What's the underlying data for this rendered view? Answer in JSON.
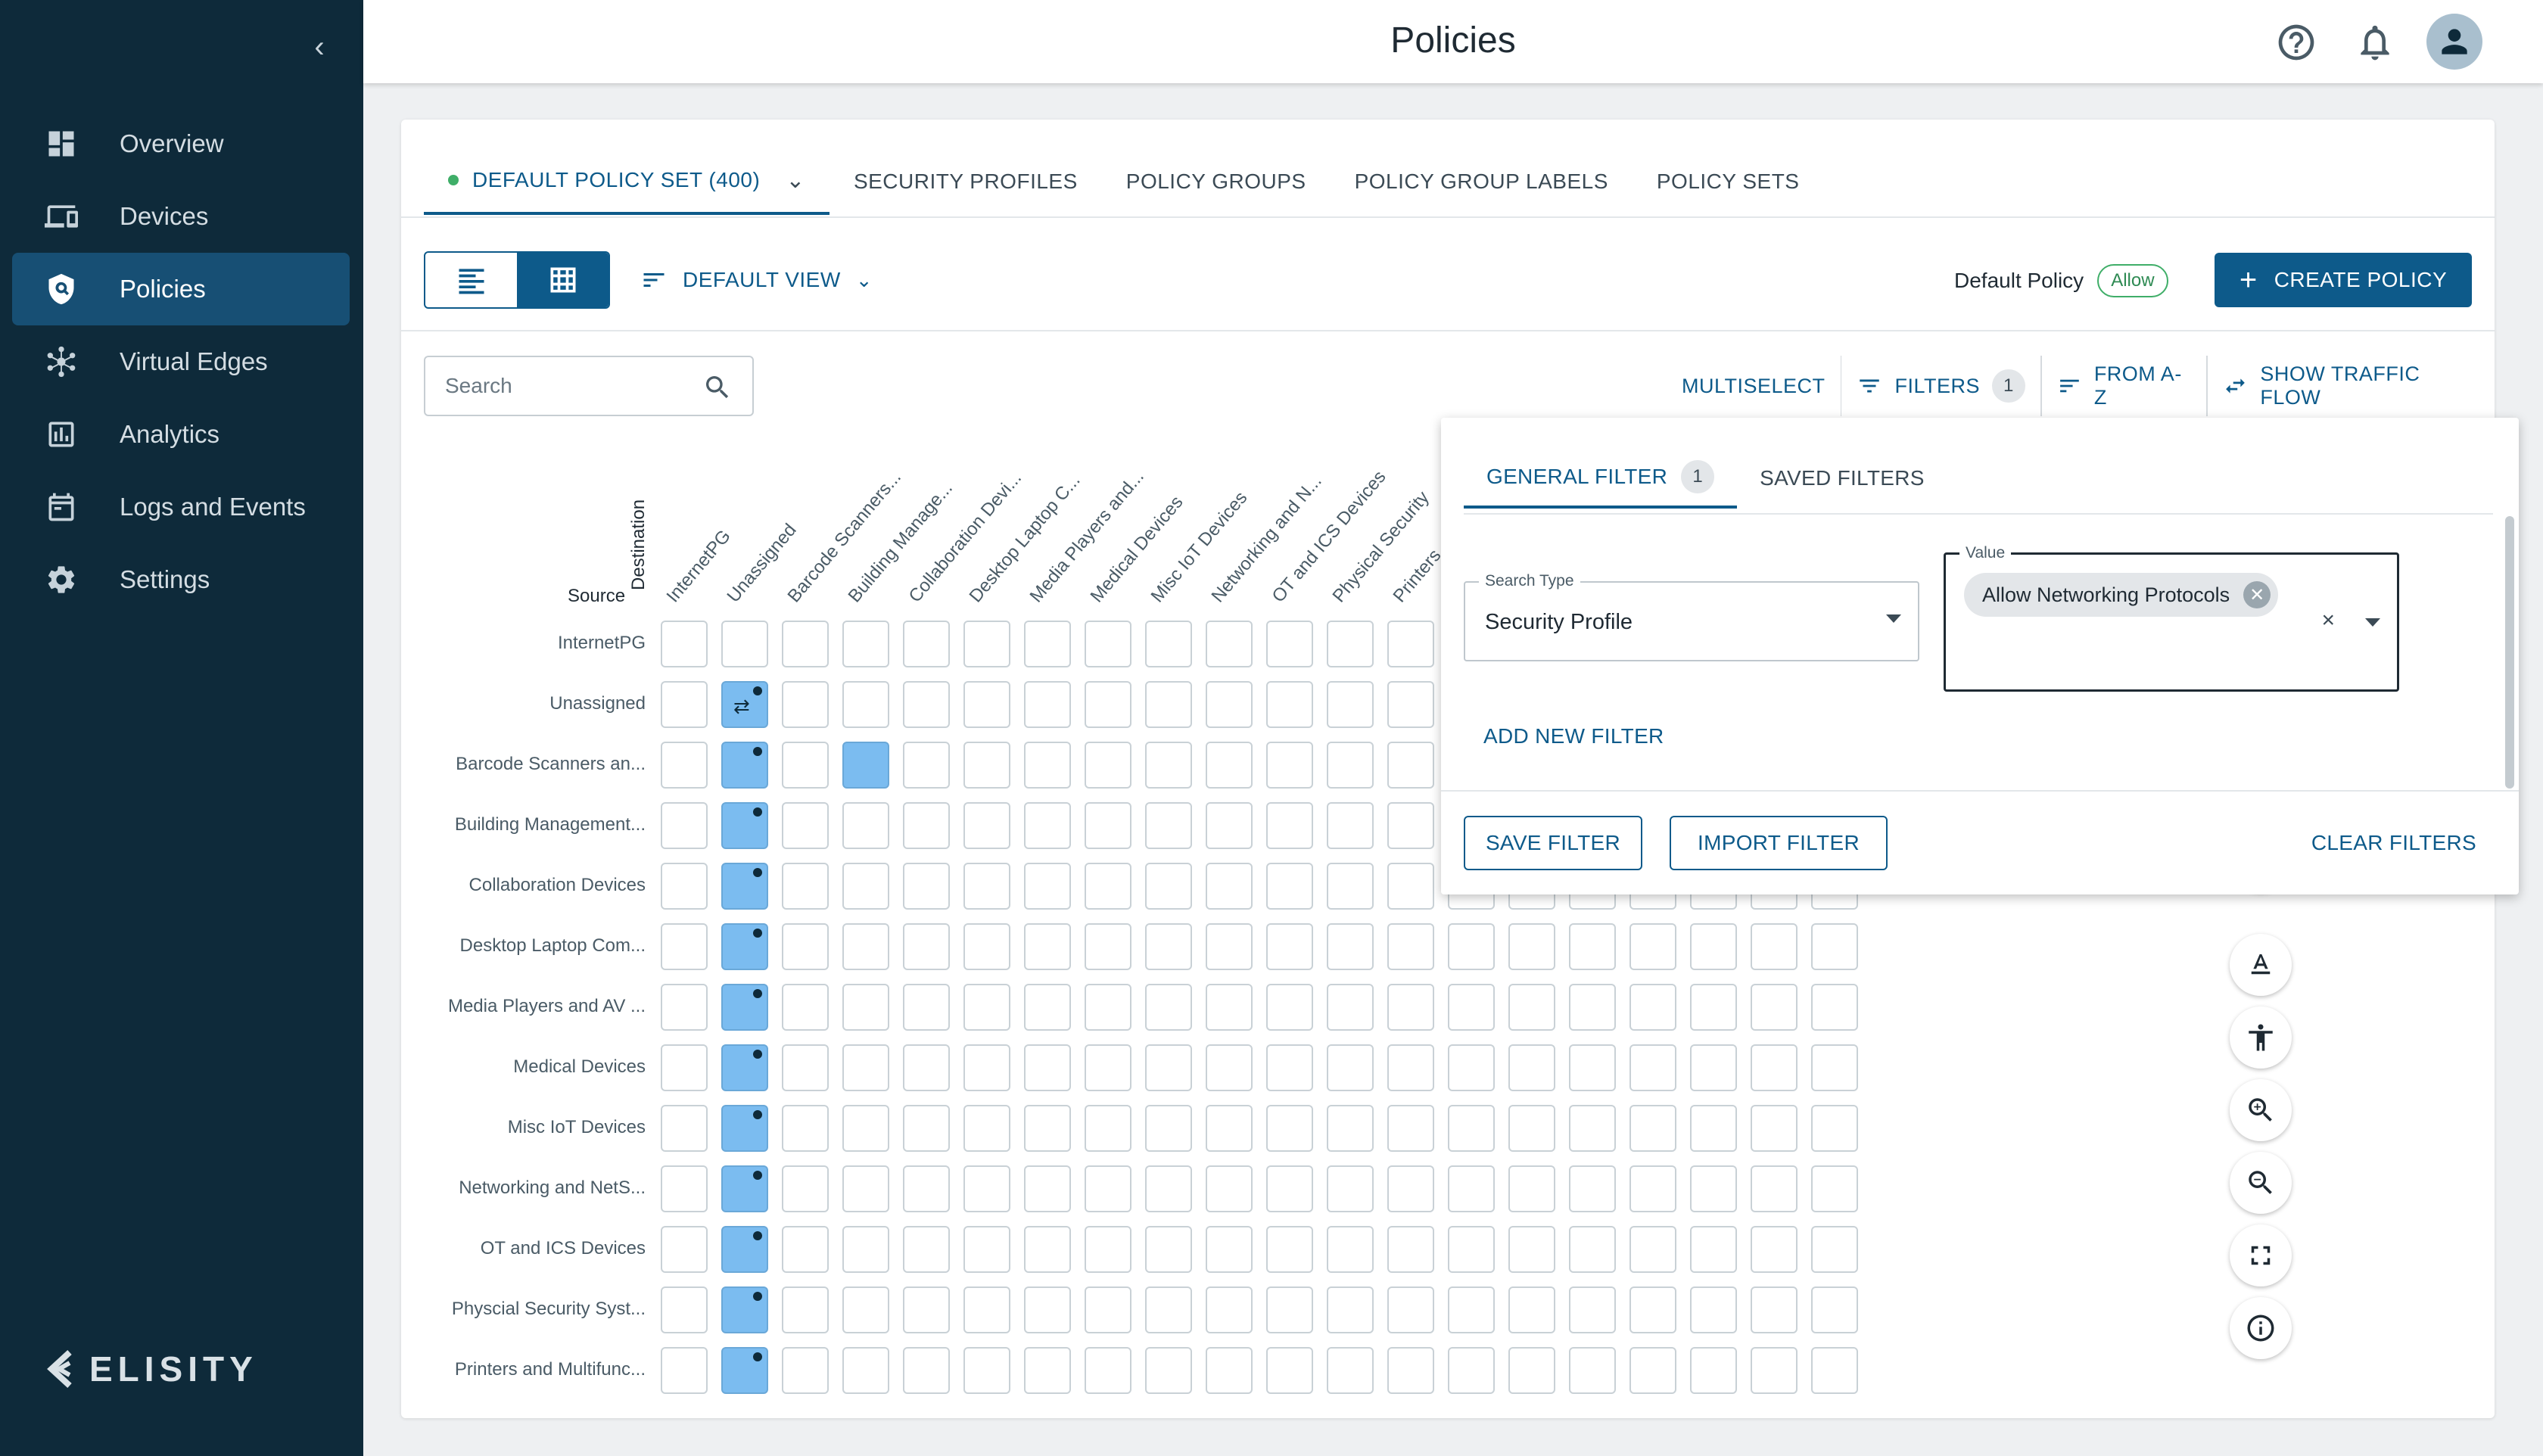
{
  "header": {
    "title": "Policies"
  },
  "sidebar": {
    "items": [
      {
        "label": "Overview",
        "icon": "dashboard-icon",
        "active": false
      },
      {
        "label": "Devices",
        "icon": "devices-icon",
        "active": false
      },
      {
        "label": "Policies",
        "icon": "shield-icon",
        "active": true
      },
      {
        "label": "Virtual Edges",
        "icon": "hub-icon",
        "active": false
      },
      {
        "label": "Analytics",
        "icon": "analytics-icon",
        "active": false
      },
      {
        "label": "Logs and Events",
        "icon": "calendar-icon",
        "active": false
      },
      {
        "label": "Settings",
        "icon": "gear-icon",
        "active": false
      }
    ],
    "brand": "ELISITY"
  },
  "tabs": [
    {
      "label": "DEFAULT POLICY SET (400)",
      "active": true
    },
    {
      "label": "SECURITY PROFILES",
      "active": false
    },
    {
      "label": "POLICY GROUPS",
      "active": false
    },
    {
      "label": "POLICY GROUP LABELS",
      "active": false
    },
    {
      "label": "POLICY SETS",
      "active": false
    }
  ],
  "toolbar": {
    "default_view": "DEFAULT VIEW",
    "default_policy_label": "Default Policy",
    "default_policy_value": "Allow",
    "create_policy": "CREATE POLICY",
    "search_placeholder": "Search",
    "multiselect": "MULTISELECT",
    "filters": "FILTERS",
    "filters_count": "1",
    "sort": "FROM A-Z",
    "traffic_flow": "SHOW TRAFFIC FLOW"
  },
  "matrix": {
    "destination_label": "Destination",
    "source_label": "Source",
    "columns": [
      "InternetPG",
      "Unassigned",
      "Barcode Scanners...",
      "Building Manage...",
      "Collaboration Devi...",
      "Desktop Laptop C...",
      "Media Players and...",
      "Medical Devices",
      "Misc IoT Devices",
      "Networking and N...",
      "OT and ICS Devices",
      "Physical Security",
      "Printers"
    ],
    "rows": [
      "InternetPG",
      "Unassigned",
      "Barcode Scanners an...",
      "Building Management...",
      "Collaboration Devices",
      "Desktop Laptop Com...",
      "Media Players and AV ...",
      "Medical Devices",
      "Misc IoT Devices",
      "Networking and NetS...",
      "OT and ICS Devices",
      "Physcial Security Syst...",
      "Printers and Multifunc..."
    ],
    "total_columns": 20,
    "flow_symbol": "⇄"
  },
  "filter_panel": {
    "tabs": [
      {
        "label": "GENERAL FILTER",
        "count": "1",
        "active": true
      },
      {
        "label": "SAVED FILTERS",
        "active": false
      }
    ],
    "search_type_label": "Search Type",
    "search_type_value": "Security Profile",
    "value_label": "Value",
    "value_chip": "Allow Networking Protocols",
    "add_new_filter": "ADD NEW FILTER",
    "save_filter": "SAVE FILTER",
    "import_filter": "IMPORT FILTER",
    "clear_filters": "CLEAR FILTERS"
  }
}
